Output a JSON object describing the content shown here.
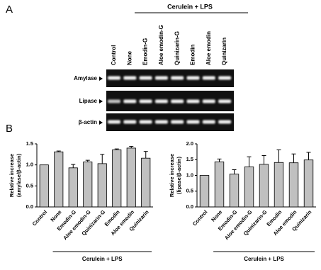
{
  "panel_labels": [
    "A",
    "B"
  ],
  "panel_a": {
    "group_label": "Cerulein + LPS",
    "lanes": [
      "Control",
      "None",
      "Emodin-G",
      "Aloe emodin-G",
      "Quinizarin-G",
      "Emodin",
      "Aloe emodin",
      "Quinizarin"
    ],
    "rows": [
      "Amylase",
      "Lipase",
      "β-actin"
    ]
  },
  "chart_data": [
    {
      "type": "bar",
      "ylabel": [
        "Relative increase",
        "(amylase/β-actin)"
      ],
      "group_label": "Cerulein + LPS",
      "categories": [
        "Control",
        "None",
        "Emodin-G",
        "Aloe emodin-G",
        "Quinizarin-G",
        "Emodin",
        "Aloe emodin",
        "Quinizarin"
      ],
      "values": [
        1.0,
        1.31,
        0.93,
        1.07,
        1.03,
        1.36,
        1.4,
        1.16
      ],
      "errors": [
        0,
        0.02,
        0.08,
        0.04,
        0.22,
        0.02,
        0.04,
        0.16
      ],
      "color": "#c0c0c0",
      "ylim": [
        0,
        1.5
      ],
      "yticks": [
        {
          "value": 0,
          "label": "0.0"
        },
        0.5,
        {
          "value": 1,
          "label": "1.0"
        },
        1.5
      ]
    },
    {
      "type": "bar",
      "ylabel": [
        "Relative increase",
        "(lipase/β-actin)"
      ],
      "group_label": "Cerulein + LPS",
      "categories": [
        "Control",
        "None",
        "Emodin-G",
        "Aloe emodin-G",
        "Quinizarin-G",
        "Emodin",
        "Aloe emodin",
        "Quinizarin"
      ],
      "values": [
        1.0,
        1.43,
        1.04,
        1.27,
        1.35,
        1.41,
        1.4,
        1.49
      ],
      "errors": [
        0,
        0.09,
        0.14,
        0.32,
        0.28,
        0.4,
        0.28,
        0.24
      ],
      "color": "#c0c0c0",
      "ylim": [
        0,
        2
      ],
      "yticks": [
        {
          "value": 0,
          "label": "0.0"
        },
        0.5,
        {
          "value": 1,
          "label": "1.0"
        },
        1.5,
        {
          "value": 2,
          "label": "2.0"
        }
      ]
    }
  ]
}
